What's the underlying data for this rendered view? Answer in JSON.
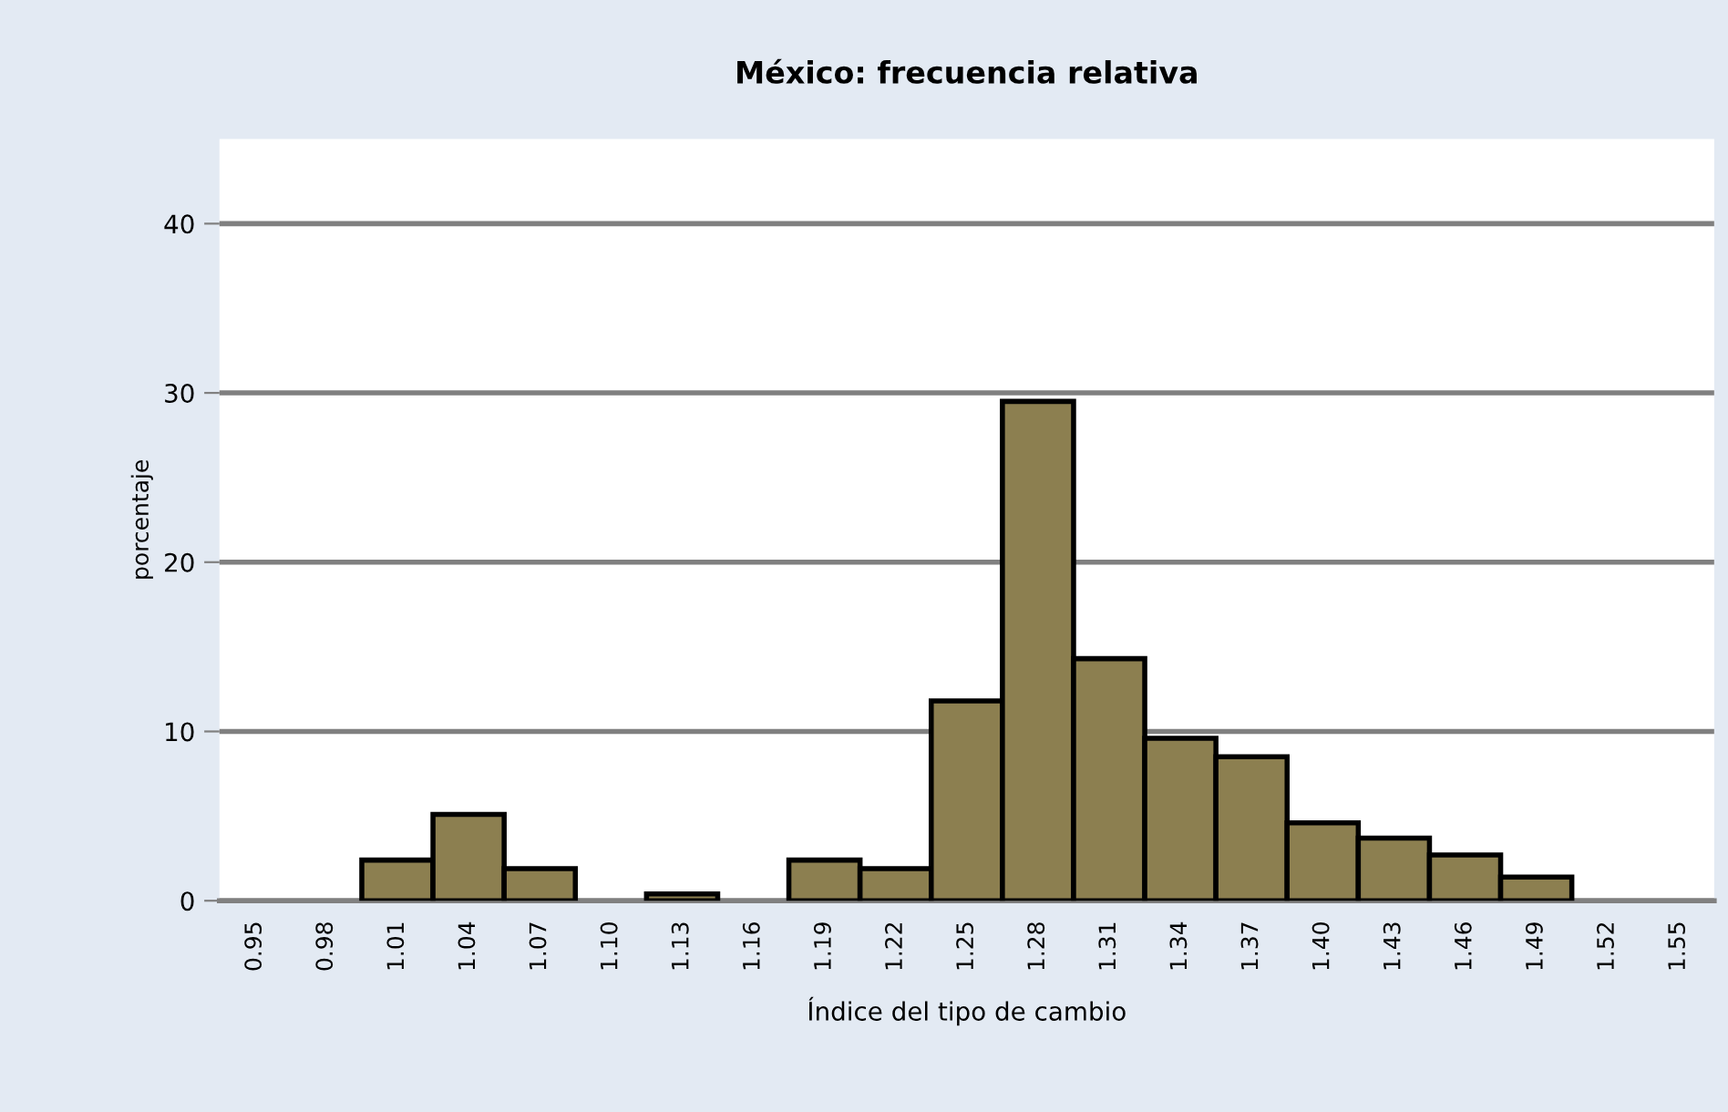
{
  "chart_data": {
    "type": "bar",
    "title": "México: frecuencia relativa",
    "xlabel": "Índice del tipo de cambio",
    "ylabel": "porcentaje",
    "categories": [
      "0.95",
      "0.98",
      "1.01",
      "1.04",
      "1.07",
      "1.10",
      "1.13",
      "1.16",
      "1.19",
      "1.22",
      "1.25",
      "1.28",
      "1.31",
      "1.34",
      "1.37",
      "1.40",
      "1.43",
      "1.46",
      "1.49",
      "1.52",
      "1.55"
    ],
    "values": [
      0,
      0,
      2.4,
      5.1,
      1.9,
      0,
      0.4,
      0,
      2.4,
      1.9,
      11.8,
      29.5,
      14.3,
      9.6,
      8.5,
      4.6,
      3.7,
      2.7,
      1.4,
      0,
      0
    ],
    "color": "#8c7f50",
    "ylim": [
      0,
      45
    ],
    "yticks": [
      0,
      10,
      20,
      30,
      40
    ],
    "grid": "y"
  }
}
